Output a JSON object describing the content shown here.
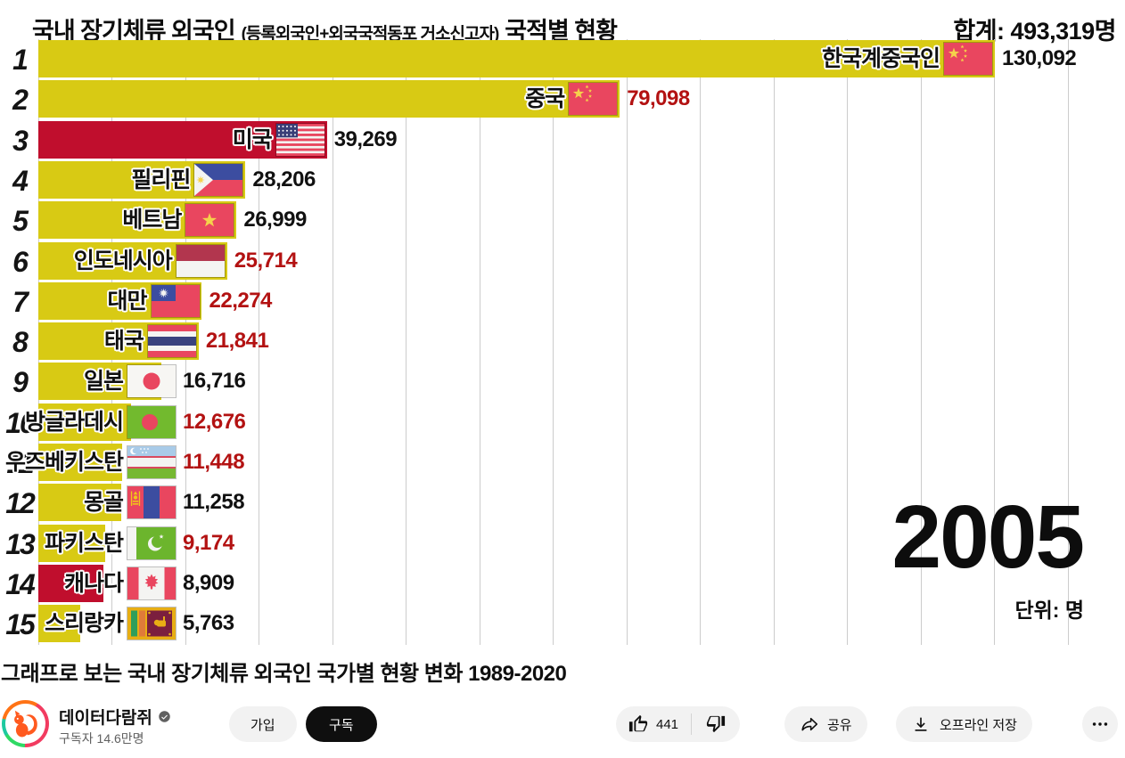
{
  "chart_data": {
    "type": "bar",
    "orientation": "horizontal",
    "title_main": "국내 장기체류 외국인",
    "title_paren": "(등록외국인+외국국적동포 거소신고자)",
    "title_tail": "국적별 현황",
    "total_label": "합계: 493,319명",
    "year": "2005",
    "unit_label": "단위: 명",
    "xlim": [
      0,
      145000
    ],
    "gridline_interval": 10000,
    "grid": true,
    "legend": "none",
    "colors": {
      "bar_yellow": "#d8ca14",
      "bar_crimson": "#c00e2d",
      "value_black": "#111111",
      "value_red": "#b31212",
      "gridline": "#cccccc"
    },
    "rows": [
      {
        "rank": 1,
        "country": "한국계중국인",
        "flag": "cn",
        "value": 130092,
        "bar": "yellow",
        "value_style": "black"
      },
      {
        "rank": 2,
        "country": "중국",
        "flag": "cn",
        "value": 79098,
        "bar": "yellow",
        "value_style": "red"
      },
      {
        "rank": 3,
        "country": "미국",
        "flag": "us",
        "value": 39269,
        "bar": "crimson",
        "value_style": "black"
      },
      {
        "rank": 4,
        "country": "필리핀",
        "flag": "ph",
        "value": 28206,
        "bar": "yellow",
        "value_style": "black"
      },
      {
        "rank": 5,
        "country": "베트남",
        "flag": "vn",
        "value": 26999,
        "bar": "yellow",
        "value_style": "black"
      },
      {
        "rank": 6,
        "country": "인도네시아",
        "flag": "id",
        "value": 25714,
        "bar": "yellow",
        "value_style": "red"
      },
      {
        "rank": 7,
        "country": "대만",
        "flag": "tw",
        "value": 22274,
        "bar": "yellow",
        "value_style": "red"
      },
      {
        "rank": 8,
        "country": "태국",
        "flag": "th",
        "value": 21841,
        "bar": "yellow",
        "value_style": "red"
      },
      {
        "rank": 9,
        "country": "일본",
        "flag": "jp",
        "value": 16716,
        "bar": "yellow",
        "value_style": "black"
      },
      {
        "rank": 10,
        "country": "방글라데시",
        "flag": "bd",
        "value": 12676,
        "bar": "yellow",
        "value_style": "red"
      },
      {
        "rank": 11,
        "country": "우즈베키스탄",
        "flag": "uz",
        "value": 11448,
        "bar": "yellow",
        "value_style": "red"
      },
      {
        "rank": 12,
        "country": "몽골",
        "flag": "mn",
        "value": 11258,
        "bar": "yellow",
        "value_style": "black"
      },
      {
        "rank": 13,
        "country": "파키스탄",
        "flag": "pk",
        "value": 9174,
        "bar": "yellow",
        "value_style": "red"
      },
      {
        "rank": 14,
        "country": "캐나다",
        "flag": "ca",
        "value": 8909,
        "bar": "crimson",
        "value_style": "black"
      },
      {
        "rank": 15,
        "country": "스리랑카",
        "flag": "lk",
        "value": 5763,
        "bar": "yellow",
        "value_style": "black"
      }
    ]
  },
  "video": {
    "title": "그래프로 보는 국내 장기체류 외국인 국가별 현황 변화 1989-2020"
  },
  "channel": {
    "name": "데이터다람쥐",
    "verified": true,
    "subscribers": "구독자 14.6만명"
  },
  "actions": {
    "join": "가입",
    "subscribe": "구독",
    "like_count": "441",
    "share": "공유",
    "offline": "오프라인 저장"
  }
}
